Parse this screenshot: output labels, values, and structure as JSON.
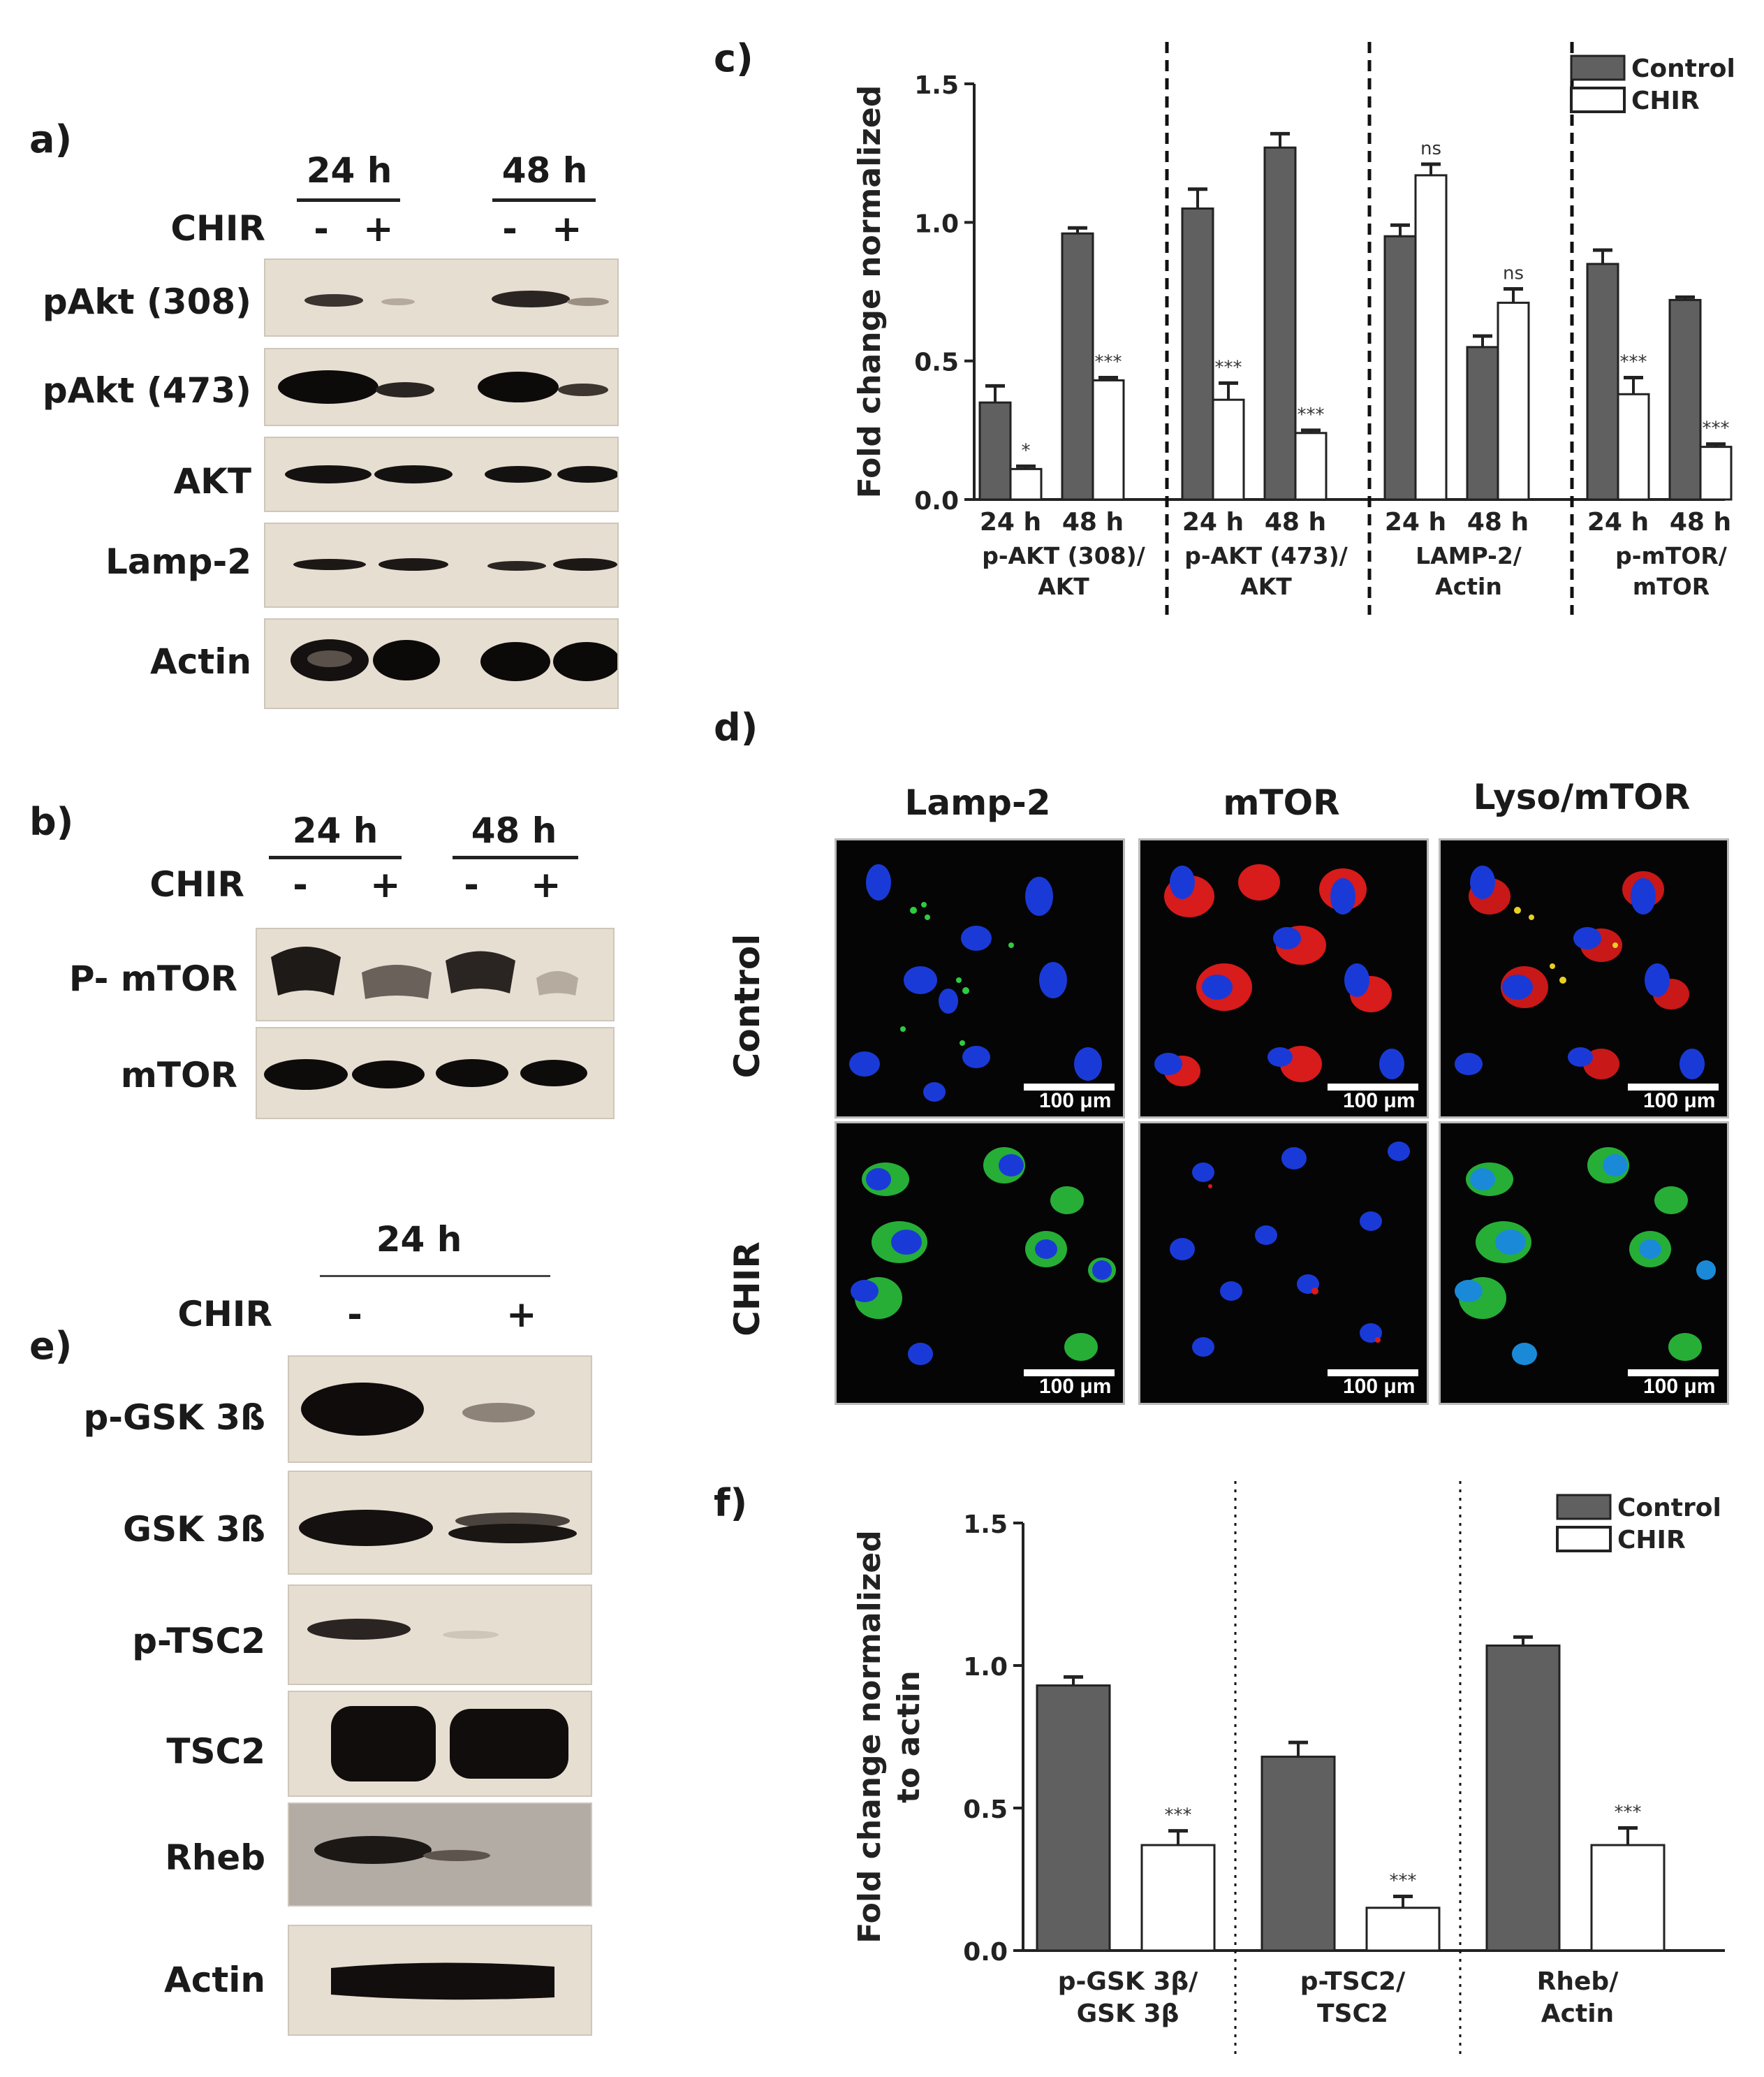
{
  "panels": {
    "a": {
      "letter": "a)",
      "time_labels": [
        "24 h",
        "48 h"
      ],
      "treatment_label": "CHIR",
      "signs": [
        "-",
        "+",
        "-",
        "+"
      ],
      "rows": [
        "pAkt (308)",
        "pAkt (473)",
        "AKT",
        "Lamp-2",
        "Actin"
      ]
    },
    "b": {
      "letter": "b)",
      "time_labels": [
        "24 h",
        "48 h"
      ],
      "treatment_label": "CHIR",
      "signs": [
        "-",
        "+",
        "-",
        "+"
      ],
      "rows": [
        "P- mTOR",
        "mTOR"
      ]
    },
    "c": {
      "letter": "c)"
    },
    "d": {
      "letter": "d)",
      "columns": [
        "Lamp-2",
        "mTOR",
        "Lyso/mTOR"
      ],
      "rows": [
        "Control",
        "CHIR"
      ],
      "scale_label": "100 μm"
    },
    "e": {
      "letter": "e)",
      "time_label": "24 h",
      "treatment_label": "CHIR",
      "signs": [
        "-",
        "+"
      ],
      "rows": [
        "p-GSK 3ß",
        "GSK 3ß",
        "p-TSC2",
        "TSC2",
        "Rheb",
        "Actin"
      ]
    },
    "f": {
      "letter": "f)"
    }
  },
  "chart_data": [
    {
      "panel": "c",
      "type": "bar",
      "ylabel": "Fold change normalized",
      "ylim": [
        0,
        1.5
      ],
      "yticks": [
        "0.0",
        "0.5",
        "1.0",
        "1.5"
      ],
      "legend": {
        "placement": "top-right",
        "entries": [
          "Control",
          "CHIR"
        ]
      },
      "colors": {
        "Control": "#606060",
        "CHIR": "#ffffff"
      },
      "groups": [
        {
          "label": [
            "p-AKT (308)/",
            "AKT"
          ],
          "categories": [
            "24 h",
            "48 h"
          ],
          "Control": [
            0.35,
            0.96
          ],
          "CHIR": [
            0.11,
            0.43
          ],
          "Control_err": [
            0.06,
            0.02
          ],
          "CHIR_err": [
            0.01,
            0.01
          ],
          "sig": [
            "*",
            "***"
          ]
        },
        {
          "label": [
            "p-AKT (473)/",
            "AKT"
          ],
          "categories": [
            "24 h",
            "48 h"
          ],
          "Control": [
            1.05,
            1.27
          ],
          "CHIR": [
            0.36,
            0.24
          ],
          "Control_err": [
            0.07,
            0.05
          ],
          "CHIR_err": [
            0.06,
            0.01
          ],
          "sig": [
            "***",
            "***"
          ]
        },
        {
          "label": [
            "LAMP-2/",
            "Actin"
          ],
          "categories": [
            "24 h",
            "48 h"
          ],
          "Control": [
            0.95,
            0.55
          ],
          "CHIR": [
            1.17,
            0.71
          ],
          "Control_err": [
            0.04,
            0.04
          ],
          "CHIR_err": [
            0.04,
            0.05
          ],
          "sig": [
            "ns",
            "ns"
          ]
        },
        {
          "label": [
            "p-mTOR/",
            "mTOR"
          ],
          "categories": [
            "24 h",
            "48 h"
          ],
          "Control": [
            0.85,
            0.72
          ],
          "CHIR": [
            0.38,
            0.19
          ],
          "Control_err": [
            0.05,
            0.01
          ],
          "CHIR_err": [
            0.06,
            0.01
          ],
          "sig": [
            "***",
            "***"
          ]
        }
      ]
    },
    {
      "panel": "f",
      "type": "bar",
      "ylabel": [
        "Fold change normalized",
        "to actin"
      ],
      "ylim": [
        0,
        1.5
      ],
      "yticks": [
        "0.0",
        "0.5",
        "1.0",
        "1.5"
      ],
      "legend": {
        "placement": "top-right",
        "entries": [
          "Control",
          "CHIR"
        ]
      },
      "colors": {
        "Control": "#606060",
        "CHIR": "#ffffff"
      },
      "groups": [
        {
          "label": [
            "p-GSK 3β/",
            "GSK 3β"
          ],
          "Control": 0.93,
          "CHIR": 0.37,
          "Control_err": 0.03,
          "CHIR_err": 0.05,
          "sig": "***"
        },
        {
          "label": [
            "p-TSC2/",
            "TSC2"
          ],
          "Control": 0.68,
          "CHIR": 0.15,
          "Control_err": 0.05,
          "CHIR_err": 0.04,
          "sig": "***"
        },
        {
          "label": [
            "Rheb/",
            "Actin"
          ],
          "Control": 1.07,
          "CHIR": 0.37,
          "Control_err": 0.03,
          "CHIR_err": 0.06,
          "sig": "***"
        }
      ]
    }
  ]
}
